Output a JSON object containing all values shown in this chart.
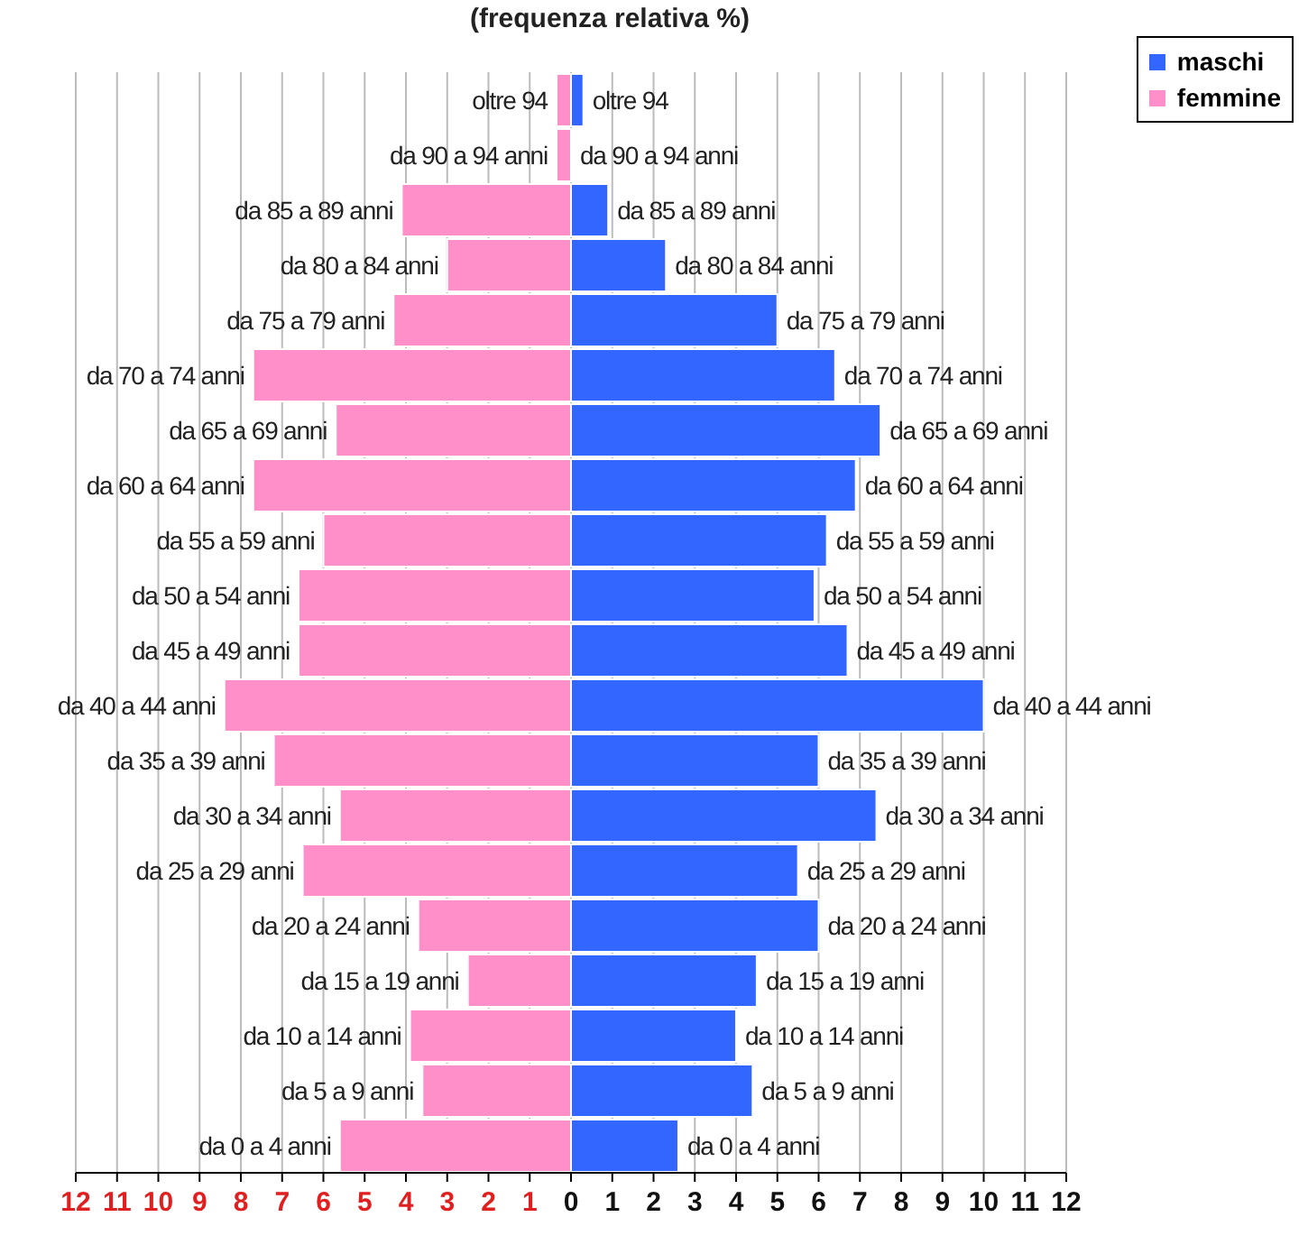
{
  "chart_data": {
    "type": "bar",
    "orientation": "horizontal",
    "stacked": true,
    "title": "(frequenza relativa %)",
    "categories": [
      "oltre 94",
      "da 90 a 94 anni",
      "da 85 a 89 anni",
      "da 80 a 84 anni",
      "da 75 a 79 anni",
      "da 70 a 74 anni",
      "da 65 a 69 anni",
      "da 60 a 64 anni",
      "da 55 a 59 anni",
      "da 50 a 54 anni",
      "da 45 a 49 anni",
      "da 40 a 44 anni",
      "da 35 a 39 anni",
      "da 30 a 34 anni",
      "da 25 a 29 anni",
      "da 20 a 24 anni",
      "da 15 a 19 anni",
      "da 10 a 14 anni",
      "da 5 a 9 anni",
      "da 0 a 4 anni"
    ],
    "series": [
      {
        "name": "maschi",
        "color": "#3366ff",
        "values": [
          0.3,
          0,
          0.9,
          2.3,
          5.0,
          6.4,
          7.5,
          6.9,
          6.2,
          5.9,
          6.7,
          10.0,
          6.0,
          7.4,
          5.5,
          6.0,
          4.5,
          4.0,
          4.4,
          2.6
        ]
      },
      {
        "name": "femmine",
        "color": "#ff8fc8",
        "values": [
          -0.35,
          -0.35,
          -4.1,
          -3.0,
          -4.3,
          -7.7,
          -5.7,
          -7.7,
          -6.0,
          -6.6,
          -6.6,
          -8.4,
          -7.2,
          -5.6,
          -6.5,
          -3.7,
          -2.5,
          -3.9,
          -3.6,
          -5.6
        ]
      }
    ],
    "xlim": [
      -12,
      12
    ],
    "xticks": [
      {
        "value": -12,
        "label": "12"
      },
      {
        "value": -11,
        "label": "11"
      },
      {
        "value": -10,
        "label": "10"
      },
      {
        "value": -9,
        "label": "9"
      },
      {
        "value": -8,
        "label": "8"
      },
      {
        "value": -7,
        "label": "7"
      },
      {
        "value": -6,
        "label": "6"
      },
      {
        "value": -5,
        "label": "5"
      },
      {
        "value": -4,
        "label": "4"
      },
      {
        "value": -3,
        "label": "3"
      },
      {
        "value": -2,
        "label": "2"
      },
      {
        "value": -1,
        "label": "1"
      },
      0,
      1,
      2,
      3,
      4,
      5,
      6,
      7,
      8,
      9,
      10,
      11,
      12
    ],
    "grid": "x",
    "legend": "top right"
  }
}
